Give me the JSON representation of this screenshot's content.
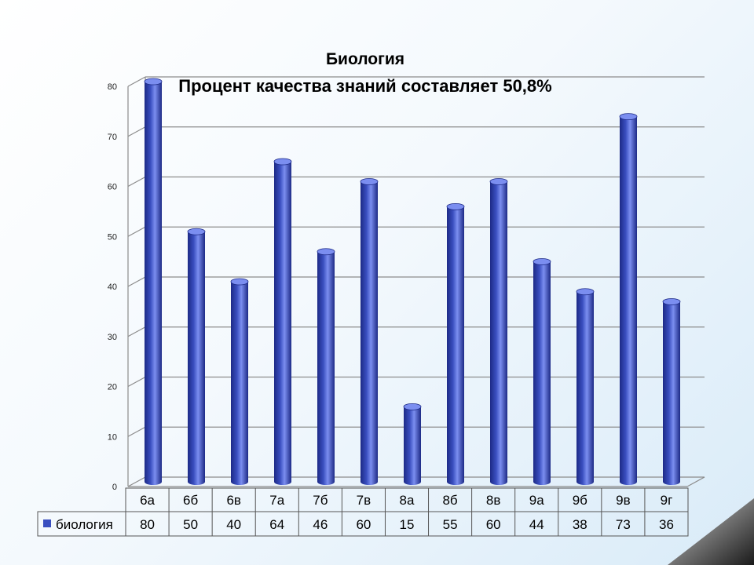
{
  "chart_data": {
    "type": "bar",
    "title": "Биология",
    "subtitle": "Процент качества знаний составляет 50,8%",
    "categories": [
      "6а",
      "6б",
      "6в",
      "7а",
      "7б",
      "7в",
      "8а",
      "8б",
      "8в",
      "9а",
      "9б",
      "9в",
      "9г"
    ],
    "series": [
      {
        "name": "биология",
        "values": [
          80,
          50,
          40,
          64,
          46,
          60,
          15,
          55,
          60,
          44,
          38,
          73,
          36
        ],
        "color": "#3a4fc0"
      }
    ],
    "ylim": [
      0,
      80
    ],
    "yticks": [
      "0",
      "10",
      "20",
      "30",
      "40",
      "50",
      "60",
      "70",
      "80"
    ],
    "grid": true,
    "legend": "bottom-left (data table)",
    "style": "3d-cylinder"
  },
  "colors": {
    "bar": "#3a4fc0",
    "bar_dark": "#1d2a86",
    "bar_light": "#7b8ef0",
    "grid": "#8c8c8c"
  }
}
